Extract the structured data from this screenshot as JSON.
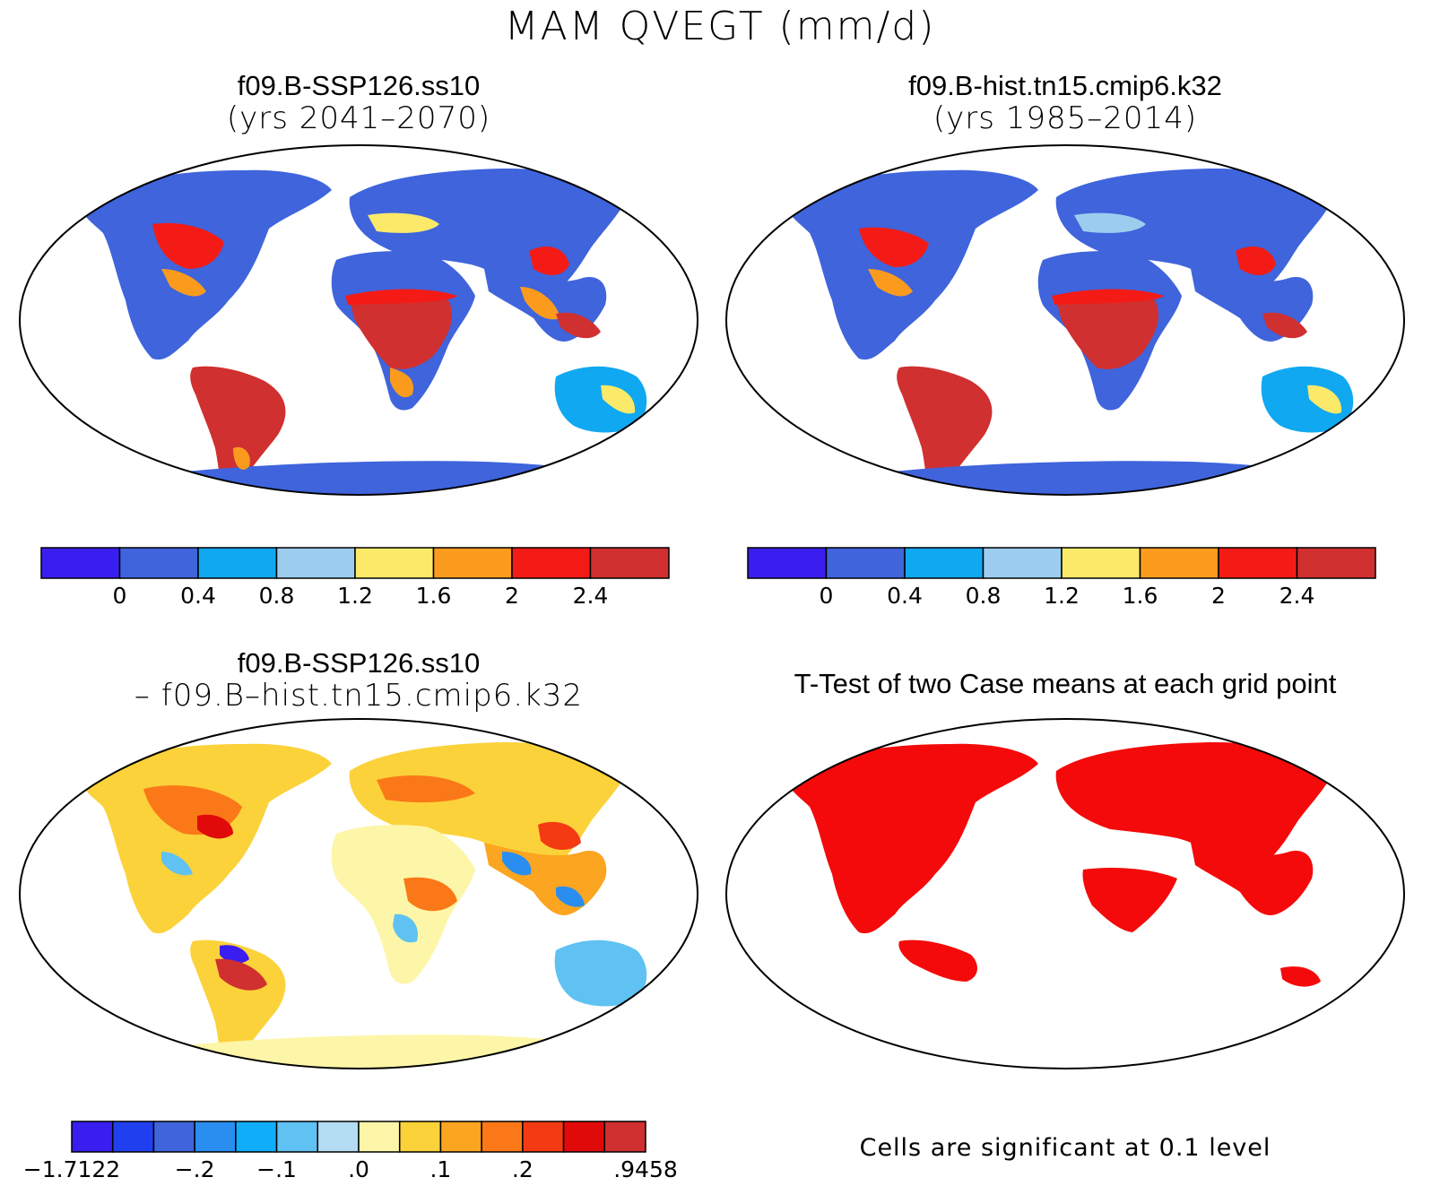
{
  "title": "MAM QVEGT (mm/d)",
  "panels": {
    "p1": {
      "title": "f09.B-SSP126.ss10",
      "subtitle": "(yrs 2041–2070)"
    },
    "p2": {
      "title": "f09.B-hist.tn15.cmip6.k32",
      "subtitle": "(yrs 1985–2014)"
    },
    "p3": {
      "title": "f09.B-SSP126.ss10",
      "subtitle": "– f09.B–hist.tn15.cmip6.k32"
    },
    "p4": {
      "title": "T-Test of two Case means at each grid point",
      "note": "Cells are significant at 0.1 level"
    }
  },
  "colorbars": {
    "mean": {
      "colors": [
        "#3a1ef0",
        "#3f64dc",
        "#10a8f0",
        "#9dcdee",
        "#fbe96a",
        "#fb9b1e",
        "#f41b16",
        "#d03030"
      ],
      "labels": [
        "0",
        "0.4",
        "0.8",
        "1.2",
        "1.6",
        "2",
        "2.4"
      ]
    },
    "diff": {
      "colors": [
        "#3a1ef0",
        "#2040f0",
        "#3f64dc",
        "#2a8ef0",
        "#10aef8",
        "#5fc2f2",
        "#b4dcf2",
        "#fdf6a8",
        "#fbd23a",
        "#fba520",
        "#fb7818",
        "#f43a12",
        "#e00a0a",
        "#d03030"
      ],
      "labels": [
        "−1.7122",
        "−.2",
        "−.1",
        ".0",
        ".1",
        ".2",
        ".9458"
      ]
    }
  }
}
